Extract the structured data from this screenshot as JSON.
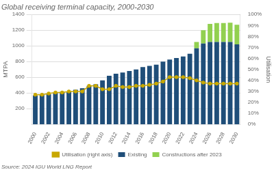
{
  "chart_data": {
    "type": "bar",
    "title": "Global receiving terminal capacity, 2000-2030",
    "y_label": "MTPA",
    "y2_label": "Utilisation",
    "annotations": [
      "Source: 2024 IGU World LNG Report"
    ],
    "categories": [
      "2000",
      null,
      "2002",
      null,
      "2004",
      null,
      "2006",
      null,
      "2008",
      null,
      "2010",
      null,
      "2012",
      null,
      "2014",
      null,
      "2016",
      null,
      "2018",
      null,
      "2020",
      null,
      "2022",
      null,
      "2024",
      null,
      "2026",
      null,
      "2028",
      null,
      "2030"
    ],
    "series": [
      {
        "name": "Existing",
        "type": "bar",
        "color": "#1F4E79",
        "values": [
          370,
          385,
          385,
          400,
          415,
          420,
          440,
          460,
          490,
          510,
          560,
          620,
          645,
          660,
          680,
          700,
          730,
          745,
          760,
          800,
          825,
          845,
          865,
          900,
          970,
          1030,
          1050,
          1050,
          1050,
          1050,
          1020
        ]
      },
      {
        "name": "Constructions after 2023",
        "type": "bar",
        "color": "#92D050",
        "values": [
          0,
          0,
          0,
          0,
          0,
          0,
          0,
          0,
          0,
          0,
          0,
          0,
          0,
          0,
          0,
          0,
          0,
          0,
          0,
          0,
          0,
          0,
          0,
          0,
          80,
          170,
          230,
          240,
          240,
          245,
          250
        ]
      },
      {
        "name": "Utilisation (right axis)",
        "type": "line",
        "color": "#C8A800",
        "marker": "o",
        "axis": "y2",
        "values": [
          27,
          27,
          28,
          29,
          29,
          30,
          30,
          30,
          35,
          35,
          32,
          32,
          35,
          34,
          34,
          35,
          35,
          36,
          37,
          39,
          43,
          43,
          43,
          42,
          40,
          38,
          37,
          37,
          37,
          37,
          37
        ]
      }
    ],
    "stacked": true,
    "ylim": [
      0,
      1400
    ],
    "yticks": [
      200,
      400,
      600,
      800,
      1000,
      1200,
      1400
    ],
    "y2lim": [
      0,
      100
    ],
    "y2ticks": [
      {
        "value": 0,
        "label": "0%"
      },
      {
        "value": 10,
        "label": "10%"
      },
      {
        "value": 20,
        "label": "20%"
      },
      {
        "value": 30,
        "label": "30%"
      },
      {
        "value": 40,
        "label": "40%"
      },
      {
        "value": 50,
        "label": "50%"
      },
      {
        "value": 60,
        "label": "60%"
      },
      {
        "value": 70,
        "label": "70%"
      },
      {
        "value": 80,
        "label": "80%"
      },
      {
        "value": 90,
        "label": "90%"
      },
      {
        "value": 100,
        "label": "100%"
      }
    ],
    "grid": true,
    "legend": "bottom"
  }
}
